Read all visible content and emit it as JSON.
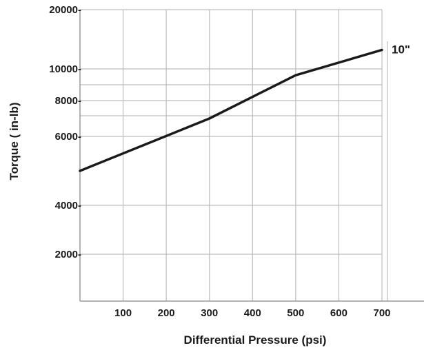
{
  "chart_data": {
    "type": "line",
    "title": "",
    "xlabel": "Differential Pressure (psi)",
    "ylabel": "Torque ( in-lb)",
    "x_ticks": [
      {
        "value": 100,
        "label": "100"
      },
      {
        "value": 200,
        "label": "200"
      },
      {
        "value": 300,
        "label": "300"
      },
      {
        "value": 400,
        "label": "400"
      },
      {
        "value": 500,
        "label": "500"
      },
      {
        "value": 600,
        "label": "600"
      },
      {
        "value": 700,
        "label": "700"
      }
    ],
    "y_ticks": [
      {
        "value": 2000,
        "label": "2000-"
      },
      {
        "value": 4000,
        "label": "4000-"
      },
      {
        "value": 6000,
        "label": "6000-"
      },
      {
        "value": 8000,
        "label": "8000-"
      },
      {
        "value": 10000,
        "label": "10000-"
      },
      {
        "value": 20000,
        "label": "20000-"
      }
    ],
    "grid": true,
    "series": [
      {
        "name": "10\"",
        "color": "#1a1a1a",
        "points": [
          {
            "x": 0,
            "y": 5000
          },
          {
            "x": 300,
            "y": 7000
          },
          {
            "x": 500,
            "y": 9600
          },
          {
            "x": 700,
            "y": 13200
          }
        ]
      }
    ]
  }
}
